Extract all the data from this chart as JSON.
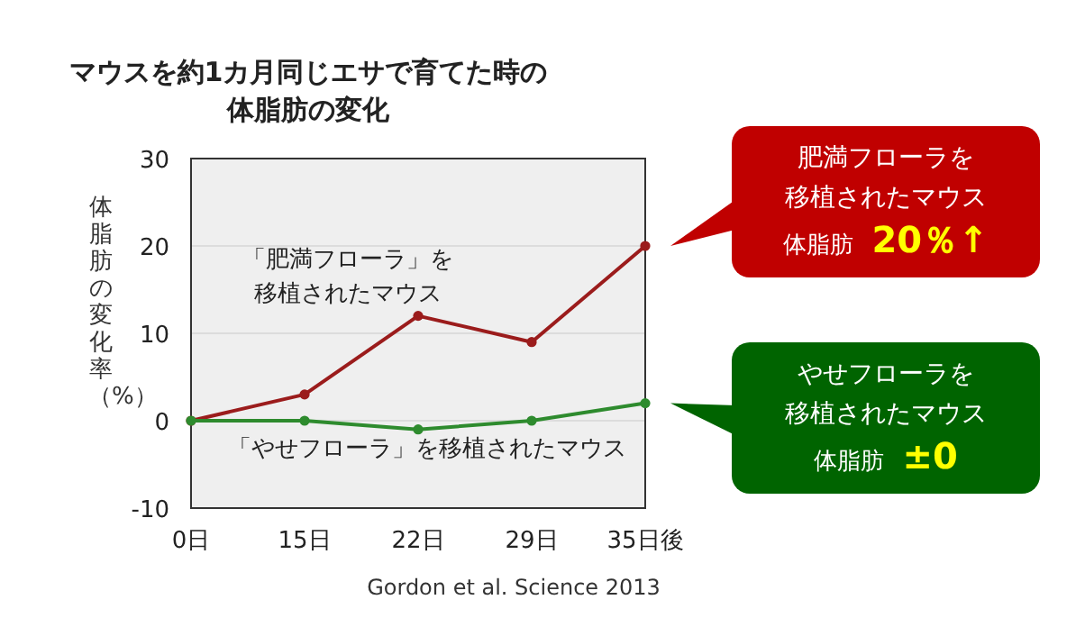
{
  "chart_data": {
    "type": "line",
    "title": "マウスを約1カ月同じエサで育てた時の体脂肪の変化",
    "ylabel": "体脂肪の変化率（%）",
    "categories": [
      "0日",
      "15日",
      "22日",
      "29日",
      "35日後"
    ],
    "series": [
      {
        "name": "「肥満フローラ」を移植されたマウス",
        "color": "#9b1c1c",
        "values": [
          0,
          3,
          12,
          9,
          20
        ]
      },
      {
        "name": "「やせフローラ」を移植されたマウス",
        "color": "#2e8b2e",
        "values": [
          0,
          0,
          -1,
          0,
          2
        ]
      }
    ],
    "ylim": [
      -10,
      30
    ],
    "yticks": [
      -10,
      0,
      10,
      20,
      30
    ],
    "grid": "y",
    "marker": "circle",
    "line_style": "solid",
    "annotations": [
      "肥満フローラを",
      "移植されたマウス",
      "体脂肪 20％↑",
      "やせフローラを",
      "移植されたマウス",
      "体脂肪 ±0",
      "Gordon et al. Science 2013"
    ]
  }
}
